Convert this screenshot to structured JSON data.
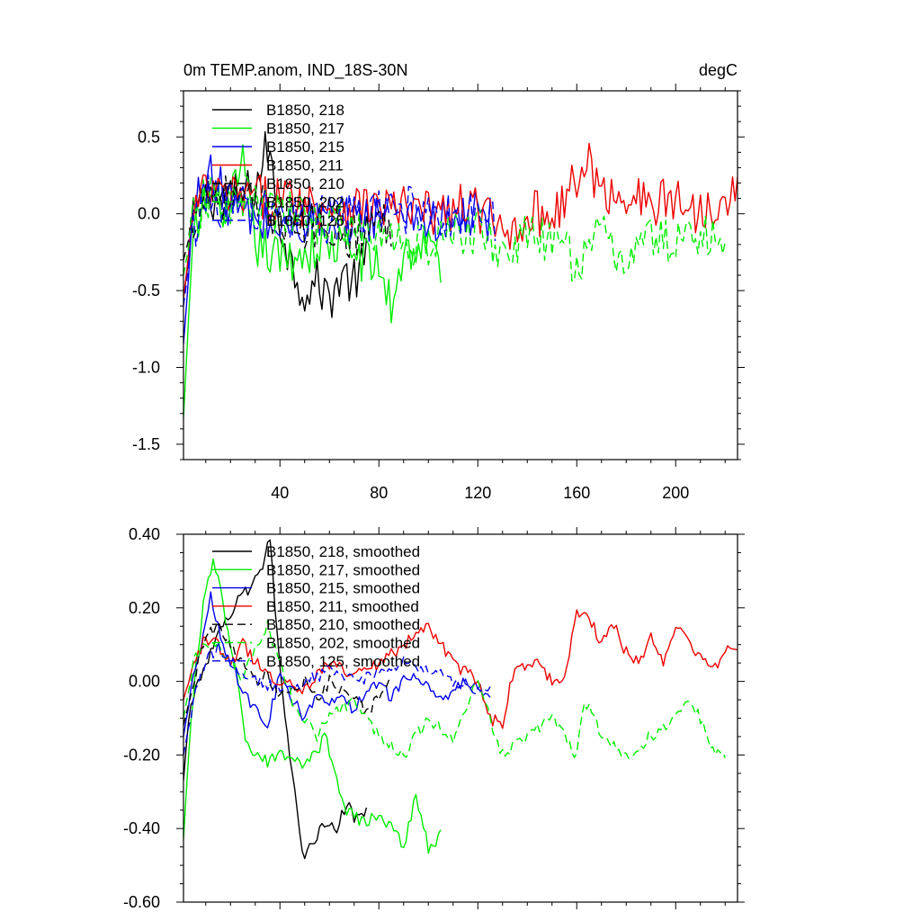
{
  "chart_data": [
    {
      "type": "line",
      "title": "0m TEMP.anom, IND_18S-30N",
      "units": "degC",
      "xlim": [
        1,
        225
      ],
      "ylim": [
        -1.6,
        0.8
      ],
      "x_ticks": [
        40,
        80,
        120,
        160,
        200
      ],
      "x_tick_labels": [
        "40",
        "80",
        "120",
        "160",
        "200"
      ],
      "y_ticks": [
        0.5,
        0.0,
        -0.5,
        -1.0,
        -1.5
      ],
      "y_tick_labels": [
        "0.5",
        "0.0",
        "-0.5",
        "-1.0",
        "-1.5"
      ],
      "legend": [
        "B1850, 218",
        "B1850, 217",
        "B1850, 215",
        "B1850, 211",
        "B1850, 210",
        "B1850, 202",
        "B1850, 125"
      ],
      "series": [
        {
          "name": "B1850, 218",
          "color": "#000000",
          "dash": "solid",
          "x_range": [
            1,
            75
          ],
          "x": [
            1,
            5,
            10,
            20,
            30,
            35,
            40,
            45,
            50,
            55,
            60,
            65,
            70,
            75
          ],
          "values": [
            -0.55,
            -0.05,
            0.12,
            0.1,
            0.15,
            0.45,
            -0.05,
            -0.35,
            -0.5,
            -0.45,
            -0.55,
            -0.4,
            -0.45,
            -0.3
          ]
        },
        {
          "name": "B1850, 217",
          "color": "#00ee00",
          "dash": "solid",
          "x_range": [
            1,
            105
          ],
          "x": [
            1,
            3,
            5,
            10,
            20,
            25,
            30,
            40,
            50,
            60,
            70,
            80,
            85,
            90,
            100,
            105
          ],
          "values": [
            -1.33,
            -0.7,
            -0.2,
            0.1,
            0.05,
            0.3,
            -0.2,
            -0.3,
            -0.25,
            -0.2,
            -0.25,
            -0.35,
            -0.6,
            -0.25,
            -0.2,
            -0.35
          ]
        },
        {
          "name": "B1850, 215",
          "color": "#0000ee",
          "dash": "solid",
          "x_range": [
            1,
            125
          ],
          "x": [
            1,
            5,
            10,
            20,
            30,
            40,
            50,
            60,
            70,
            80,
            90,
            100,
            110,
            120,
            125
          ],
          "values": [
            -0.85,
            0.0,
            0.3,
            0.05,
            -0.05,
            -0.1,
            -0.05,
            0.0,
            -0.05,
            0.0,
            0.05,
            -0.05,
            -0.05,
            0.0,
            -0.05
          ]
        },
        {
          "name": "B1850, 211",
          "color": "#ee0000",
          "dash": "solid",
          "x_range": [
            1,
            225
          ],
          "x": [
            1,
            5,
            10,
            20,
            40,
            60,
            80,
            100,
            120,
            130,
            140,
            150,
            160,
            165,
            170,
            180,
            190,
            200,
            210,
            220,
            225
          ],
          "values": [
            -0.55,
            0.0,
            0.15,
            0.1,
            0.1,
            0.05,
            0.05,
            0.0,
            0.05,
            -0.15,
            0.0,
            0.0,
            0.2,
            0.35,
            0.1,
            0.15,
            0.05,
            0.1,
            0.0,
            0.15,
            0.15
          ]
        },
        {
          "name": "B1850, 210",
          "color": "#000000",
          "dash": "dashed",
          "x_range": [
            1,
            85
          ],
          "x": [
            1,
            5,
            10,
            20,
            30,
            40,
            50,
            60,
            70,
            80,
            85
          ],
          "values": [
            -0.3,
            -0.05,
            0.15,
            0.1,
            0.05,
            0.0,
            -0.1,
            -0.05,
            -0.15,
            -0.05,
            -0.1
          ]
        },
        {
          "name": "B1850, 202",
          "color": "#00ee00",
          "dash": "dashed",
          "x_range": [
            1,
            220
          ],
          "x": [
            1,
            5,
            10,
            20,
            40,
            60,
            80,
            100,
            120,
            130,
            140,
            150,
            160,
            170,
            180,
            190,
            200,
            210,
            220
          ],
          "values": [
            -0.4,
            -0.05,
            0.1,
            0.05,
            0.0,
            -0.05,
            -0.15,
            -0.2,
            -0.1,
            -0.25,
            -0.15,
            -0.2,
            -0.3,
            -0.15,
            -0.3,
            -0.15,
            -0.2,
            -0.1,
            -0.25
          ]
        },
        {
          "name": "B1850, 125",
          "color": "#0000ee",
          "dash": "dashed",
          "x_range": [
            1,
            127
          ],
          "x": [
            1,
            5,
            10,
            20,
            40,
            60,
            80,
            100,
            110,
            120,
            127
          ],
          "values": [
            -0.6,
            -0.1,
            0.1,
            0.05,
            0.0,
            -0.05,
            0.0,
            0.05,
            -0.05,
            0.0,
            -0.05
          ]
        }
      ]
    },
    {
      "type": "line",
      "title": "",
      "xlim": [
        1,
        225
      ],
      "ylim": [
        -0.6,
        0.4
      ],
      "x_ticks": [
        40,
        80,
        120,
        160,
        200
      ],
      "y_ticks": [
        0.4,
        0.2,
        0.0,
        -0.2,
        -0.4,
        -0.6
      ],
      "y_tick_labels": [
        "0.40",
        "0.20",
        "0.00",
        "-0.20",
        "-0.40",
        "-0.60"
      ],
      "legend": [
        "B1850, 218, smoothed",
        "B1850, 217, smoothed",
        "B1850, 215, smoothed",
        "B1850, 211, smoothed",
        "B1850, 210, smoothed",
        "B1850, 202, smoothed",
        "B1850, 125, smoothed"
      ],
      "series": [
        {
          "name": "B1850, 218, smoothed",
          "color": "#000000",
          "dash": "solid",
          "x": [
            1,
            3,
            6,
            10,
            15,
            20,
            25,
            30,
            33,
            36,
            38,
            40,
            43,
            46,
            48,
            50,
            53,
            56,
            60,
            63,
            66,
            68,
            70,
            72,
            75
          ],
          "values": [
            -0.27,
            -0.1,
            -0.02,
            0.05,
            0.12,
            0.18,
            0.24,
            0.27,
            0.31,
            0.39,
            0.2,
            0.05,
            -0.15,
            -0.3,
            -0.42,
            -0.47,
            -0.45,
            -0.4,
            -0.38,
            -0.4,
            -0.35,
            -0.33,
            -0.38,
            -0.35,
            -0.36
          ]
        },
        {
          "name": "B1850, 217, smoothed",
          "color": "#00ee00",
          "dash": "solid",
          "x": [
            1,
            3,
            6,
            10,
            13,
            16,
            20,
            23,
            26,
            30,
            35,
            40,
            45,
            50,
            55,
            58,
            62,
            65,
            70,
            75,
            80,
            85,
            90,
            95,
            100,
            105
          ],
          "values": [
            -0.43,
            -0.2,
            0.05,
            0.25,
            0.32,
            0.25,
            0.1,
            0.0,
            -0.15,
            -0.2,
            -0.22,
            -0.2,
            -0.22,
            -0.22,
            -0.2,
            -0.13,
            -0.25,
            -0.33,
            -0.37,
            -0.38,
            -0.36,
            -0.4,
            -0.45,
            -0.31,
            -0.45,
            -0.42
          ]
        },
        {
          "name": "B1850, 215, smoothed",
          "color": "#0000ee",
          "dash": "solid",
          "x": [
            1,
            4,
            8,
            12,
            16,
            20,
            25,
            30,
            35,
            40,
            45,
            50,
            55,
            60,
            65,
            70,
            75,
            80,
            85,
            90,
            95,
            100,
            105,
            110,
            115,
            120,
            125
          ],
          "values": [
            -0.15,
            -0.02,
            0.1,
            0.23,
            0.12,
            0.05,
            -0.02,
            -0.08,
            -0.12,
            0.02,
            -0.05,
            -0.1,
            -0.03,
            -0.05,
            -0.05,
            -0.08,
            -0.02,
            0.0,
            -0.05,
            0.0,
            0.02,
            -0.02,
            -0.05,
            -0.03,
            0.0,
            -0.02,
            -0.04
          ]
        },
        {
          "name": "B1850, 211, smoothed",
          "color": "#ee0000",
          "dash": "solid",
          "x": [
            1,
            5,
            10,
            15,
            20,
            25,
            30,
            40,
            50,
            60,
            70,
            80,
            90,
            100,
            110,
            120,
            125,
            130,
            135,
            140,
            145,
            150,
            155,
            160,
            165,
            170,
            175,
            180,
            185,
            190,
            195,
            200,
            205,
            210,
            215,
            220,
            225
          ],
          "values": [
            -0.05,
            0.05,
            0.12,
            0.1,
            0.05,
            0.1,
            0.05,
            0.0,
            -0.02,
            0.05,
            0.02,
            0.05,
            0.1,
            0.15,
            0.05,
            0.0,
            -0.1,
            -0.12,
            0.05,
            0.03,
            0.05,
            0.0,
            0.0,
            0.19,
            0.18,
            0.1,
            0.15,
            0.08,
            0.05,
            0.12,
            0.05,
            0.15,
            0.12,
            0.06,
            0.03,
            0.08,
            0.1
          ]
        },
        {
          "name": "B1850, 210, smoothed",
          "color": "#000000",
          "dash": "dashed",
          "x": [
            1,
            5,
            10,
            15,
            20,
            25,
            30,
            35,
            40,
            45,
            50,
            55,
            60,
            65,
            70,
            75,
            80,
            85
          ],
          "values": [
            -0.12,
            0.0,
            0.12,
            0.15,
            0.1,
            0.05,
            0.0,
            0.02,
            -0.05,
            -0.02,
            0.0,
            -0.05,
            0.0,
            -0.02,
            -0.05,
            -0.08,
            -0.05,
            0.0
          ]
        },
        {
          "name": "B1850, 202, smoothed",
          "color": "#00ee00",
          "dash": "dashed",
          "x": [
            1,
            5,
            10,
            15,
            20,
            25,
            30,
            35,
            40,
            45,
            50,
            55,
            60,
            70,
            80,
            90,
            100,
            110,
            120,
            130,
            140,
            150,
            160,
            163,
            170,
            180,
            190,
            200,
            205,
            210,
            215,
            220
          ],
          "values": [
            -0.1,
            0.05,
            0.1,
            0.1,
            0.05,
            0.0,
            0.1,
            0.15,
            0.05,
            -0.05,
            -0.1,
            -0.15,
            -0.1,
            -0.05,
            -0.15,
            -0.2,
            -0.1,
            -0.15,
            0.0,
            -0.2,
            -0.15,
            -0.1,
            -0.2,
            -0.05,
            -0.15,
            -0.2,
            -0.15,
            -0.1,
            -0.05,
            -0.1,
            -0.18,
            -0.2
          ]
        },
        {
          "name": "B1850, 125, smoothed",
          "color": "#0000ee",
          "dash": "dashed",
          "x": [
            1,
            5,
            10,
            15,
            20,
            30,
            40,
            50,
            60,
            70,
            80,
            90,
            100,
            110,
            120,
            125
          ],
          "values": [
            -0.2,
            -0.05,
            0.05,
            0.1,
            0.05,
            0.0,
            -0.02,
            0.0,
            0.03,
            0.0,
            0.02,
            0.05,
            0.03,
            0.0,
            -0.02,
            -0.03
          ]
        }
      ]
    }
  ]
}
